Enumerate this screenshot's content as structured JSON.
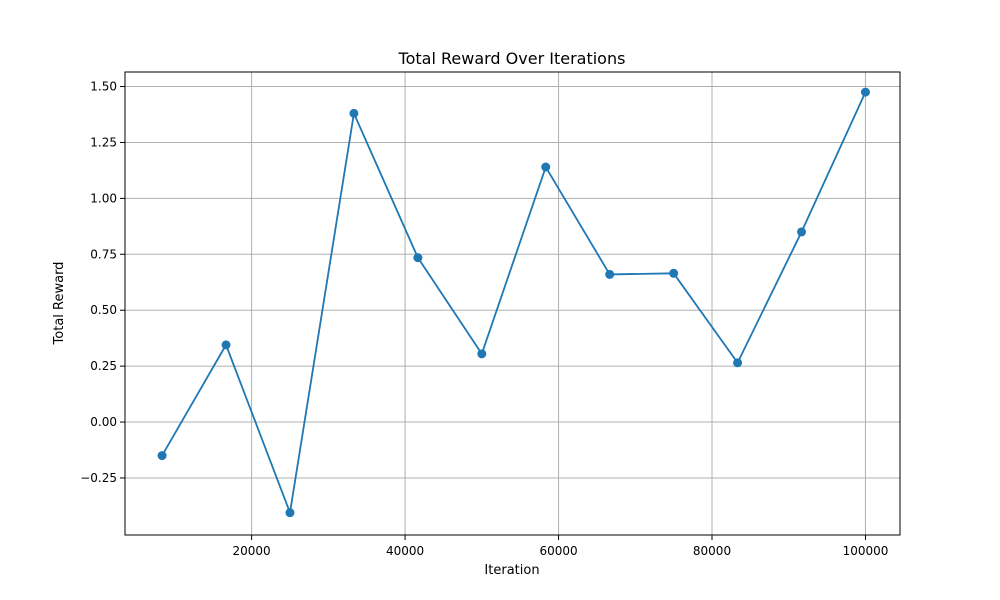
{
  "chart_data": {
    "type": "line",
    "title": "Total Reward Over Iterations",
    "xlabel": "Iteration",
    "ylabel": "Total Reward",
    "xlim": [
      3500,
      104500
    ],
    "ylim": [
      -0.505,
      1.565
    ],
    "xticks": [
      20000,
      40000,
      60000,
      80000,
      100000
    ],
    "xtick_labels": [
      "20000",
      "40000",
      "60000",
      "80000",
      "100000"
    ],
    "yticks": [
      -0.25,
      0.0,
      0.25,
      0.5,
      0.75,
      1.0,
      1.25,
      1.5
    ],
    "ytick_labels": [
      "−0.25",
      "0.00",
      "0.25",
      "0.50",
      "0.75",
      "1.00",
      "1.25",
      "1.50"
    ],
    "grid": true,
    "color": "#1f77b4",
    "marker": "circle",
    "series": [
      {
        "x": [
          8333,
          16667,
          25000,
          33333,
          41667,
          50000,
          58333,
          66667,
          75000,
          83333,
          91667,
          100000
        ],
        "y": [
          -0.15,
          0.345,
          -0.405,
          1.38,
          0.735,
          0.305,
          1.14,
          0.66,
          0.665,
          0.265,
          0.85,
          1.475
        ]
      }
    ]
  }
}
